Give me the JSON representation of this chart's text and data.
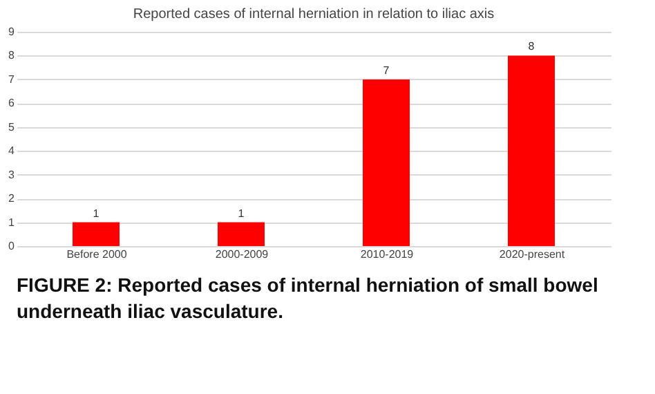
{
  "chart_data": {
    "type": "bar",
    "title": "Reported cases of internal herniation in relation to iliac axis",
    "categories": [
      "Before 2000",
      "2000-2009",
      "2010-2019",
      "2020-present"
    ],
    "values": [
      1,
      1,
      7,
      8
    ],
    "color": "#ff0000",
    "ylim": [
      0,
      9
    ],
    "yticks": [
      0,
      1,
      2,
      3,
      4,
      5,
      6,
      7,
      8,
      9
    ],
    "grid": "y",
    "data_labels": true,
    "annotations": [
      "FIGURE 2: Reported cases of internal herniation of small bowel underneath iliac vasculature."
    ]
  }
}
